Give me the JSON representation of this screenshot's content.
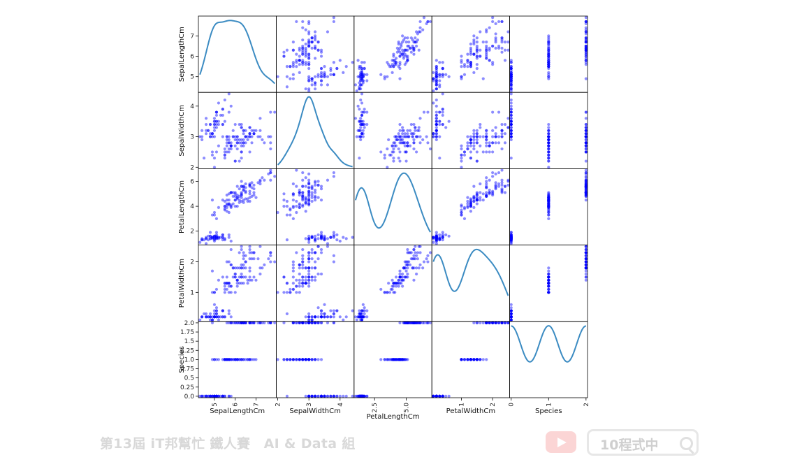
{
  "chart_data": {
    "type": "scatter",
    "subtype": "scatter-matrix",
    "variables": [
      "SepalLengthCm",
      "SepalWidthCm",
      "PetalLengthCm",
      "PetalWidthCm",
      "Species"
    ],
    "diagonal": "kde",
    "point_color": "#0000ff",
    "kde_color": "#3b8bc2",
    "ranges": [
      [
        4.3,
        7.9
      ],
      [
        2.0,
        4.4
      ],
      [
        1.0,
        6.9
      ],
      [
        0.1,
        2.5
      ],
      [
        0.0,
        2.0
      ]
    ],
    "axis_ticks": [
      [
        "5",
        "6",
        "7"
      ],
      [
        "2",
        "3",
        "4"
      ],
      [
        "2.5",
        "5.0"
      ],
      [
        "1",
        "2"
      ],
      [
        "0",
        "1",
        "2"
      ]
    ],
    "row_ticks": [
      [
        "5",
        "6",
        "7"
      ],
      [
        "2",
        "3",
        "4"
      ],
      [
        "2",
        "4",
        "6"
      ],
      [
        "1",
        "2"
      ],
      [
        "0.0",
        "0.25",
        "0.5",
        "0.75",
        "1.0",
        "1.25",
        "1.5",
        "1.75",
        "2.0"
      ]
    ],
    "rows": [
      [
        5.1,
        3.5,
        1.4,
        0.2,
        0
      ],
      [
        4.9,
        3.0,
        1.4,
        0.2,
        0
      ],
      [
        4.7,
        3.2,
        1.3,
        0.2,
        0
      ],
      [
        4.6,
        3.1,
        1.5,
        0.2,
        0
      ],
      [
        5.0,
        3.6,
        1.4,
        0.2,
        0
      ],
      [
        5.4,
        3.9,
        1.7,
        0.4,
        0
      ],
      [
        4.6,
        3.4,
        1.4,
        0.3,
        0
      ],
      [
        5.0,
        3.4,
        1.5,
        0.2,
        0
      ],
      [
        4.4,
        2.9,
        1.4,
        0.2,
        0
      ],
      [
        4.9,
        3.1,
        1.5,
        0.1,
        0
      ],
      [
        5.4,
        3.7,
        1.5,
        0.2,
        0
      ],
      [
        4.8,
        3.4,
        1.6,
        0.2,
        0
      ],
      [
        4.8,
        3.0,
        1.4,
        0.1,
        0
      ],
      [
        4.3,
        3.0,
        1.1,
        0.1,
        0
      ],
      [
        5.8,
        4.0,
        1.2,
        0.2,
        0
      ],
      [
        5.7,
        4.4,
        1.5,
        0.4,
        0
      ],
      [
        5.4,
        3.9,
        1.3,
        0.4,
        0
      ],
      [
        5.1,
        3.5,
        1.4,
        0.3,
        0
      ],
      [
        5.7,
        3.8,
        1.7,
        0.3,
        0
      ],
      [
        5.1,
        3.8,
        1.5,
        0.3,
        0
      ],
      [
        5.4,
        3.4,
        1.7,
        0.2,
        0
      ],
      [
        5.1,
        3.7,
        1.5,
        0.4,
        0
      ],
      [
        4.6,
        3.6,
        1.0,
        0.2,
        0
      ],
      [
        5.1,
        3.3,
        1.7,
        0.5,
        0
      ],
      [
        4.8,
        3.4,
        1.9,
        0.2,
        0
      ],
      [
        5.0,
        3.0,
        1.6,
        0.2,
        0
      ],
      [
        5.0,
        3.4,
        1.6,
        0.4,
        0
      ],
      [
        5.2,
        3.5,
        1.5,
        0.2,
        0
      ],
      [
        5.2,
        3.4,
        1.4,
        0.2,
        0
      ],
      [
        4.7,
        3.2,
        1.6,
        0.2,
        0
      ],
      [
        4.8,
        3.1,
        1.6,
        0.2,
        0
      ],
      [
        5.4,
        3.4,
        1.5,
        0.4,
        0
      ],
      [
        5.2,
        4.1,
        1.5,
        0.1,
        0
      ],
      [
        5.5,
        4.2,
        1.4,
        0.2,
        0
      ],
      [
        4.9,
        3.1,
        1.5,
        0.1,
        0
      ],
      [
        5.0,
        3.2,
        1.2,
        0.2,
        0
      ],
      [
        5.5,
        3.5,
        1.3,
        0.2,
        0
      ],
      [
        4.9,
        3.1,
        1.5,
        0.1,
        0
      ],
      [
        4.4,
        3.0,
        1.3,
        0.2,
        0
      ],
      [
        5.1,
        3.4,
        1.5,
        0.2,
        0
      ],
      [
        5.0,
        3.5,
        1.3,
        0.3,
        0
      ],
      [
        4.5,
        2.3,
        1.3,
        0.3,
        0
      ],
      [
        4.4,
        3.2,
        1.3,
        0.2,
        0
      ],
      [
        5.0,
        3.5,
        1.6,
        0.6,
        0
      ],
      [
        5.1,
        3.8,
        1.9,
        0.4,
        0
      ],
      [
        4.8,
        3.0,
        1.4,
        0.3,
        0
      ],
      [
        5.1,
        3.8,
        1.6,
        0.2,
        0
      ],
      [
        4.6,
        3.2,
        1.4,
        0.2,
        0
      ],
      [
        5.3,
        3.7,
        1.5,
        0.2,
        0
      ],
      [
        5.0,
        3.3,
        1.4,
        0.2,
        0
      ],
      [
        7.0,
        3.2,
        4.7,
        1.4,
        1
      ],
      [
        6.4,
        3.2,
        4.5,
        1.5,
        1
      ],
      [
        6.9,
        3.1,
        4.9,
        1.5,
        1
      ],
      [
        5.5,
        2.3,
        4.0,
        1.3,
        1
      ],
      [
        6.5,
        2.8,
        4.6,
        1.5,
        1
      ],
      [
        5.7,
        2.8,
        4.5,
        1.3,
        1
      ],
      [
        6.3,
        3.3,
        4.7,
        1.6,
        1
      ],
      [
        4.9,
        2.4,
        3.3,
        1.0,
        1
      ],
      [
        6.6,
        2.9,
        4.6,
        1.3,
        1
      ],
      [
        5.2,
        2.7,
        3.9,
        1.4,
        1
      ],
      [
        5.0,
        2.0,
        3.5,
        1.0,
        1
      ],
      [
        5.9,
        3.0,
        4.2,
        1.5,
        1
      ],
      [
        6.0,
        2.2,
        4.0,
        1.0,
        1
      ],
      [
        6.1,
        2.9,
        4.7,
        1.4,
        1
      ],
      [
        5.6,
        2.9,
        3.6,
        1.3,
        1
      ],
      [
        6.7,
        3.1,
        4.4,
        1.4,
        1
      ],
      [
        5.6,
        3.0,
        4.5,
        1.5,
        1
      ],
      [
        5.8,
        2.7,
        4.1,
        1.0,
        1
      ],
      [
        6.2,
        2.2,
        4.5,
        1.5,
        1
      ],
      [
        5.6,
        2.5,
        3.9,
        1.1,
        1
      ],
      [
        5.9,
        3.2,
        4.8,
        1.8,
        1
      ],
      [
        6.1,
        2.8,
        4.0,
        1.3,
        1
      ],
      [
        6.3,
        2.5,
        4.9,
        1.5,
        1
      ],
      [
        6.1,
        2.8,
        4.7,
        1.2,
        1
      ],
      [
        6.4,
        2.9,
        4.3,
        1.3,
        1
      ],
      [
        6.6,
        3.0,
        4.4,
        1.4,
        1
      ],
      [
        6.8,
        2.8,
        4.8,
        1.4,
        1
      ],
      [
        6.7,
        3.0,
        5.0,
        1.7,
        1
      ],
      [
        6.0,
        2.9,
        4.5,
        1.5,
        1
      ],
      [
        5.7,
        2.6,
        3.5,
        1.0,
        1
      ],
      [
        5.5,
        2.4,
        3.8,
        1.1,
        1
      ],
      [
        5.5,
        2.4,
        3.7,
        1.0,
        1
      ],
      [
        5.8,
        2.7,
        3.9,
        1.2,
        1
      ],
      [
        6.0,
        2.7,
        5.1,
        1.6,
        1
      ],
      [
        5.4,
        3.0,
        4.5,
        1.5,
        1
      ],
      [
        6.0,
        3.4,
        4.5,
        1.6,
        1
      ],
      [
        6.7,
        3.1,
        4.7,
        1.5,
        1
      ],
      [
        6.3,
        2.3,
        4.4,
        1.3,
        1
      ],
      [
        5.6,
        3.0,
        4.1,
        1.3,
        1
      ],
      [
        5.5,
        2.5,
        4.0,
        1.3,
        1
      ],
      [
        5.5,
        2.6,
        4.4,
        1.2,
        1
      ],
      [
        6.1,
        3.0,
        4.6,
        1.4,
        1
      ],
      [
        5.8,
        2.6,
        4.0,
        1.2,
        1
      ],
      [
        5.0,
        2.3,
        3.3,
        1.0,
        1
      ],
      [
        5.6,
        2.7,
        4.2,
        1.3,
        1
      ],
      [
        5.7,
        3.0,
        4.2,
        1.2,
        1
      ],
      [
        5.7,
        2.9,
        4.2,
        1.3,
        1
      ],
      [
        6.2,
        2.9,
        4.3,
        1.3,
        1
      ],
      [
        5.1,
        2.5,
        3.0,
        1.1,
        1
      ],
      [
        5.7,
        2.8,
        4.1,
        1.3,
        1
      ],
      [
        6.3,
        3.3,
        6.0,
        2.5,
        2
      ],
      [
        5.8,
        2.7,
        5.1,
        1.9,
        2
      ],
      [
        7.1,
        3.0,
        5.9,
        2.1,
        2
      ],
      [
        6.3,
        2.9,
        5.6,
        1.8,
        2
      ],
      [
        6.5,
        3.0,
        5.8,
        2.2,
        2
      ],
      [
        7.6,
        3.0,
        6.6,
        2.1,
        2
      ],
      [
        4.9,
        2.5,
        4.5,
        1.7,
        2
      ],
      [
        7.3,
        2.9,
        6.3,
        1.8,
        2
      ],
      [
        6.7,
        2.5,
        5.8,
        1.8,
        2
      ],
      [
        7.2,
        3.6,
        6.1,
        2.5,
        2
      ],
      [
        6.5,
        3.2,
        5.1,
        2.0,
        2
      ],
      [
        6.4,
        2.7,
        5.3,
        1.9,
        2
      ],
      [
        6.8,
        3.0,
        5.5,
        2.1,
        2
      ],
      [
        5.7,
        2.5,
        5.0,
        2.0,
        2
      ],
      [
        5.8,
        2.8,
        5.1,
        2.4,
        2
      ],
      [
        6.4,
        3.2,
        5.3,
        2.3,
        2
      ],
      [
        6.5,
        3.0,
        5.5,
        1.8,
        2
      ],
      [
        7.7,
        3.8,
        6.7,
        2.2,
        2
      ],
      [
        7.7,
        2.6,
        6.9,
        2.3,
        2
      ],
      [
        6.0,
        2.2,
        5.0,
        1.5,
        2
      ],
      [
        6.9,
        3.2,
        5.7,
        2.3,
        2
      ],
      [
        5.6,
        2.8,
        4.9,
        2.0,
        2
      ],
      [
        7.7,
        2.8,
        6.7,
        2.0,
        2
      ],
      [
        6.3,
        2.7,
        4.9,
        1.8,
        2
      ],
      [
        6.7,
        3.3,
        5.7,
        2.1,
        2
      ],
      [
        7.2,
        3.2,
        6.0,
        1.8,
        2
      ],
      [
        6.2,
        2.8,
        4.8,
        1.8,
        2
      ],
      [
        6.1,
        3.0,
        4.9,
        1.8,
        2
      ],
      [
        6.4,
        2.8,
        5.6,
        2.1,
        2
      ],
      [
        7.2,
        3.0,
        5.8,
        1.6,
        2
      ],
      [
        7.4,
        2.8,
        6.1,
        1.9,
        2
      ],
      [
        7.9,
        3.8,
        6.4,
        2.0,
        2
      ],
      [
        6.4,
        2.8,
        5.6,
        2.2,
        2
      ],
      [
        6.3,
        2.8,
        5.1,
        1.5,
        2
      ],
      [
        6.1,
        2.6,
        5.6,
        1.4,
        2
      ],
      [
        7.7,
        3.0,
        6.1,
        2.3,
        2
      ],
      [
        6.3,
        3.4,
        5.6,
        2.4,
        2
      ],
      [
        6.4,
        3.1,
        5.5,
        1.8,
        2
      ],
      [
        6.0,
        3.0,
        4.8,
        1.8,
        2
      ],
      [
        6.9,
        3.1,
        5.4,
        2.1,
        2
      ],
      [
        6.7,
        3.1,
        5.6,
        2.4,
        2
      ],
      [
        6.9,
        3.1,
        5.1,
        2.3,
        2
      ],
      [
        5.8,
        2.7,
        5.1,
        1.9,
        2
      ],
      [
        6.8,
        3.2,
        5.9,
        2.3,
        2
      ],
      [
        6.7,
        3.3,
        5.7,
        2.5,
        2
      ],
      [
        6.7,
        3.0,
        5.2,
        2.3,
        2
      ],
      [
        6.3,
        2.5,
        5.0,
        1.9,
        2
      ],
      [
        6.5,
        3.0,
        5.2,
        2.0,
        2
      ],
      [
        6.2,
        3.4,
        5.4,
        2.3,
        2
      ],
      [
        5.9,
        3.0,
        5.1,
        1.8,
        2
      ]
    ]
  },
  "footer": {
    "banner_text": "第13屆 iT邦幫忙 鐵人賽　AI & Data 組",
    "search_text": "10程式中",
    "youtube_icon": "youtube-icon",
    "search_icon": "search-icon"
  }
}
